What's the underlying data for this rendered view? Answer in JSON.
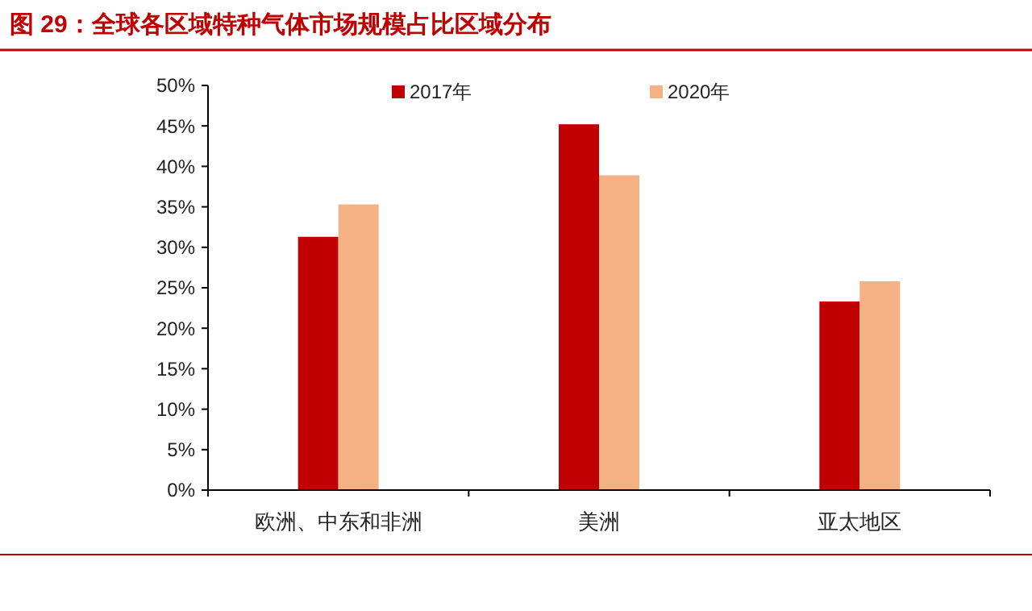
{
  "chart_data": {
    "type": "bar",
    "title": "图 29：全球各区域特种气体市场规模占比区域分布",
    "categories": [
      "欧洲、中东和非洲",
      "美洲",
      "亚太地区"
    ],
    "series": [
      {
        "name": "2017年",
        "color": "#c00000",
        "values": [
          31.3,
          45.2,
          23.3
        ]
      },
      {
        "name": "2020年",
        "color": "#f4b183",
        "values": [
          35.3,
          38.9,
          25.8
        ]
      }
    ],
    "ylim": [
      0,
      50
    ],
    "yticks": [
      {
        "value": 0,
        "label": "0%"
      },
      {
        "value": 5,
        "label": "5%"
      },
      {
        "value": 10,
        "label": "10%"
      },
      {
        "value": 15,
        "label": "15%"
      },
      {
        "value": 20,
        "label": "20%"
      },
      {
        "value": 25,
        "label": "25%"
      },
      {
        "value": 30,
        "label": "30%"
      },
      {
        "value": 35,
        "label": "35%"
      },
      {
        "value": 40,
        "label": "40%"
      },
      {
        "value": 45,
        "label": "45%"
      },
      {
        "value": 50,
        "label": "50%"
      }
    ],
    "legend": "top",
    "grid": false
  }
}
